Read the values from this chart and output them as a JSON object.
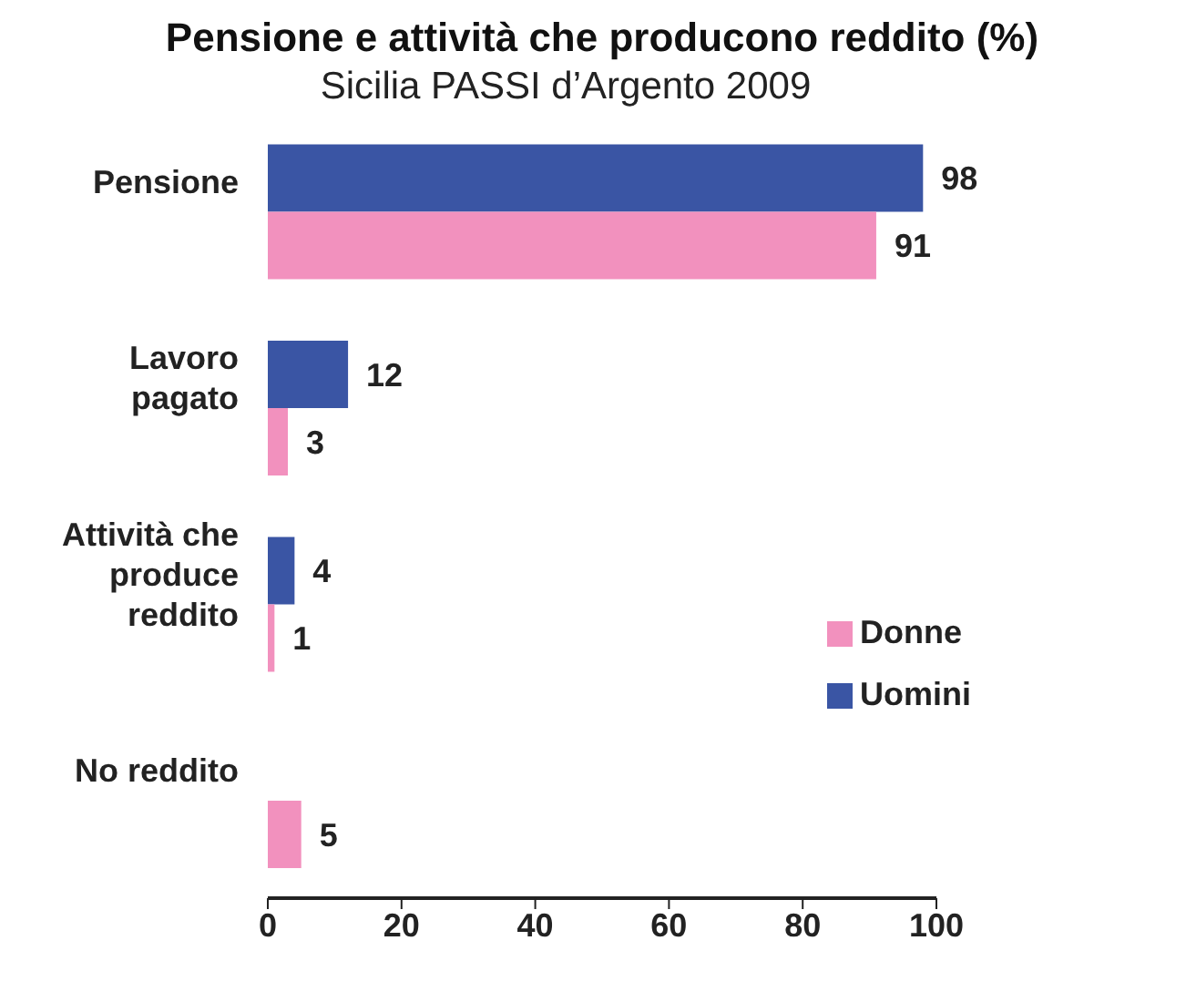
{
  "chart_data": {
    "type": "bar",
    "orientation": "horizontal",
    "title": "Pensione e attività che producono reddito (%)",
    "subtitle": "Sicilia PASSI d’Argento 2009",
    "categories": [
      "Pensione",
      "Lavoro pagato",
      "Attività che produce reddito",
      "No reddito"
    ],
    "series": [
      {
        "name": "Uomini",
        "color": "#3a55a4",
        "values": [
          98,
          12,
          4,
          null
        ]
      },
      {
        "name": "Donne",
        "color": "#f291be",
        "values": [
          91,
          3,
          1,
          5
        ]
      }
    ],
    "xlim": [
      0,
      100
    ],
    "xticks": [
      0,
      20,
      40,
      60,
      80,
      100
    ],
    "grid": false,
    "legend": "right",
    "data_labels": true
  }
}
